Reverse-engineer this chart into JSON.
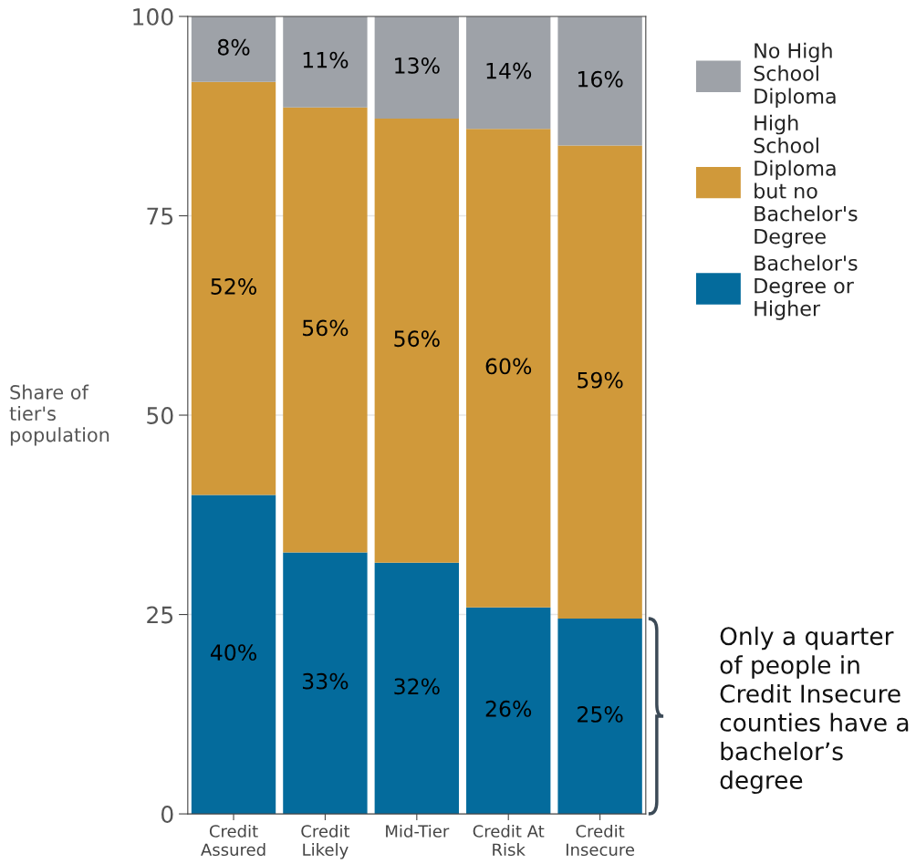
{
  "chart_data": {
    "type": "bar",
    "stacked": true,
    "ylabel": "Share of\ntier's\npopulation",
    "categories": [
      "Credit\nAssured",
      "Credit\nLikely",
      "Mid-Tier",
      "Credit At\nRisk",
      "Credit\nInsecure"
    ],
    "series": [
      {
        "name": "Bachelor's\nDegree or\nHigher",
        "color": "#046b9c",
        "values": [
          40.0,
          32.8,
          31.5,
          25.9,
          24.5
        ],
        "value_labels": [
          "40%",
          "33%",
          "32%",
          "26%",
          "25%"
        ]
      },
      {
        "name": "High\nSchool\nDiploma\nbut no\nBachelor's\nDegree",
        "color": "#d0993a",
        "values": [
          51.8,
          55.8,
          55.7,
          60.0,
          59.3
        ],
        "value_labels": [
          "52%",
          "56%",
          "56%",
          "60%",
          "59%"
        ]
      },
      {
        "name": "No High\nSchool\nDiploma",
        "color": "#9ea2a8",
        "values": [
          8.2,
          11.4,
          12.8,
          14.1,
          16.2
        ],
        "value_labels": [
          "8%",
          "11%",
          "13%",
          "14%",
          "16%"
        ]
      }
    ],
    "ylim": [
      0,
      100
    ],
    "yticks": [
      0,
      25,
      50,
      75,
      100
    ],
    "grid": "y",
    "legend": "top right",
    "annotations": [
      "Only a quarter\nof people in\nCredit Insecure\ncounties have a\nbachelor’s\ndegree"
    ]
  }
}
